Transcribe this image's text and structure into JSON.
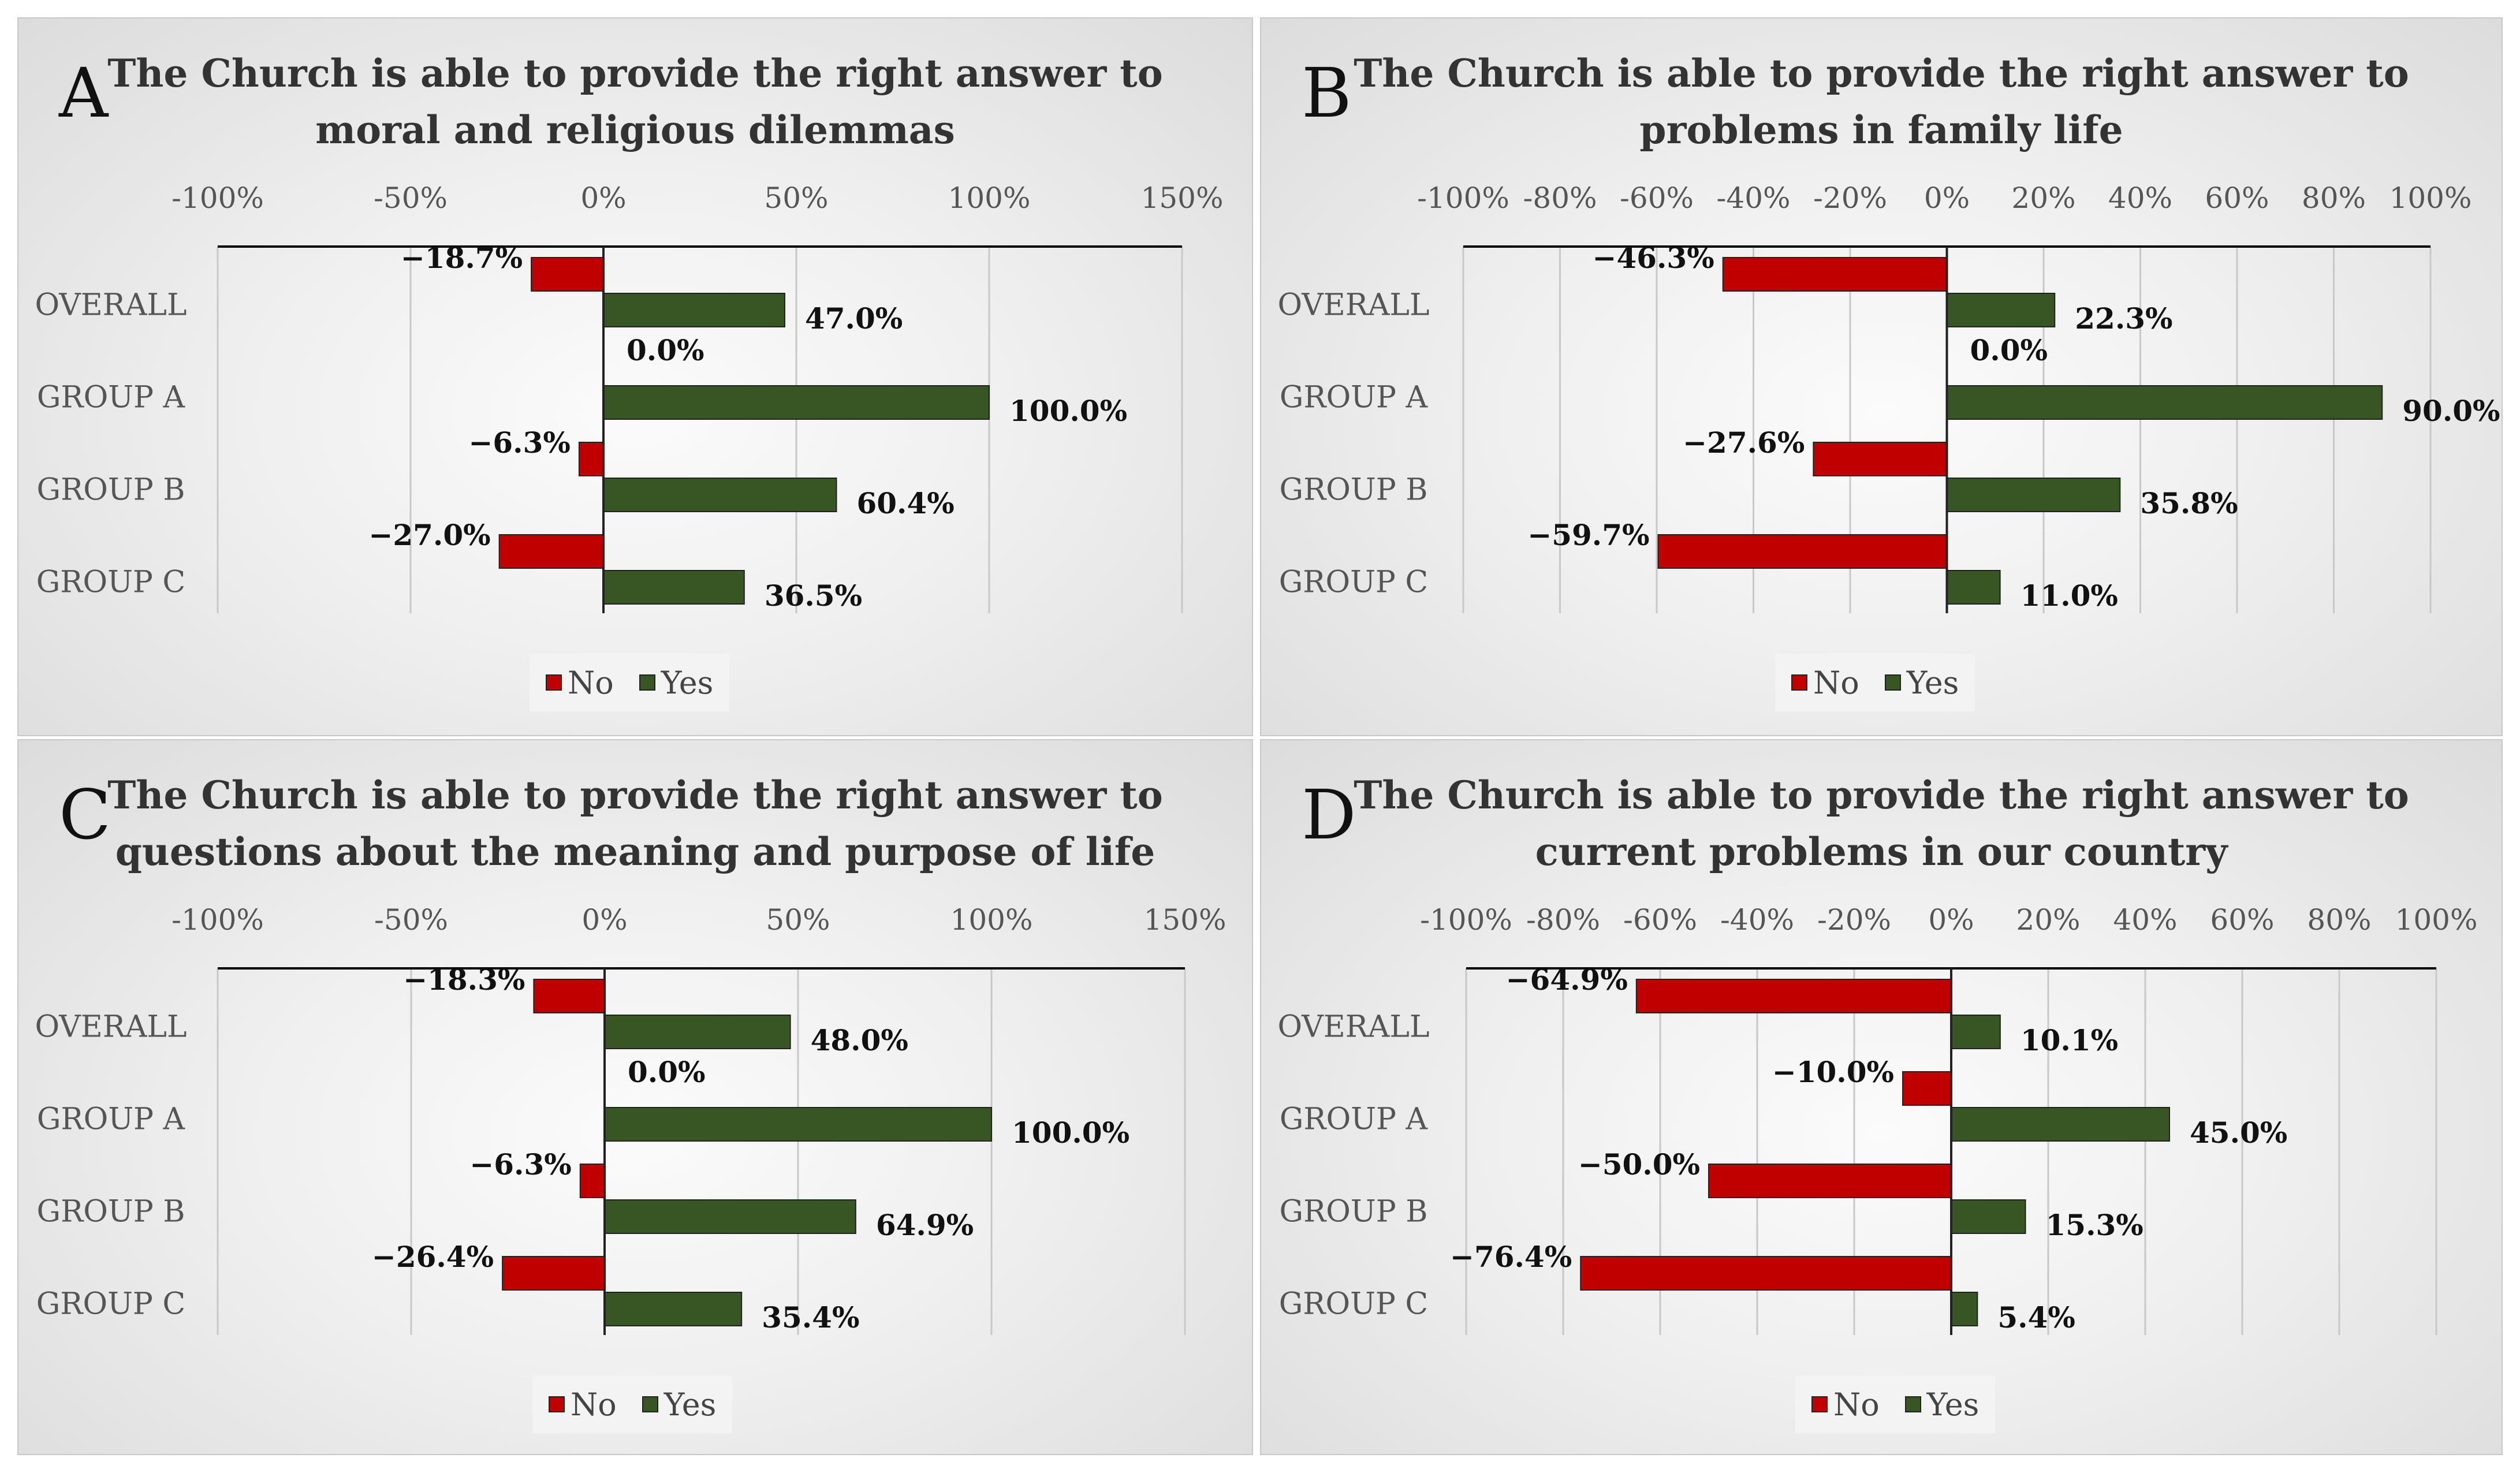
{
  "colors": {
    "no": "#c00000",
    "yes": "#375623",
    "grid": "#c8c8c8",
    "axis": "#000000"
  },
  "legend": {
    "no": "No",
    "yes": "Yes"
  },
  "chart_data": [
    {
      "type": "bar",
      "panel": "A",
      "title": [
        "The Church is able to provide the right answer to",
        "moral and religious dilemmas"
      ],
      "categories": [
        "OVERALL",
        "GROUP A",
        "GROUP B",
        "GROUP C"
      ],
      "xlim": [
        -100,
        150
      ],
      "ticks": [
        -100,
        -50,
        0,
        50,
        100,
        150
      ],
      "tick_labels": [
        "-100%",
        "-50%",
        "0%",
        "50%",
        "100%",
        "150%"
      ],
      "series": [
        {
          "name": "No",
          "values": [
            -18.7,
            0.0,
            -6.3,
            -27.0
          ],
          "labels": [
            "−18.7%",
            "0.0%",
            "−6.3%",
            "−27.0%"
          ]
        },
        {
          "name": "Yes",
          "values": [
            47.0,
            100.0,
            60.4,
            36.5
          ],
          "labels": [
            "47.0%",
            "100.0%",
            "60.4%",
            "36.5%"
          ]
        }
      ],
      "legend_position": "bottom"
    },
    {
      "type": "bar",
      "panel": "B",
      "title": [
        "The Church is able to provide the right answer to",
        "problems in family life"
      ],
      "categories": [
        "OVERALL",
        "GROUP A",
        "GROUP B",
        "GROUP C"
      ],
      "xlim": [
        -100,
        100
      ],
      "ticks": [
        -100,
        -80,
        -60,
        -40,
        -20,
        0,
        20,
        40,
        60,
        80,
        100
      ],
      "tick_labels": [
        "-100%",
        "-80%",
        "-60%",
        "-40%",
        "-20%",
        "0%",
        "20%",
        "40%",
        "60%",
        "80%",
        "100%"
      ],
      "series": [
        {
          "name": "No",
          "values": [
            -46.3,
            0.0,
            -27.6,
            -59.7
          ],
          "labels": [
            "−46.3%",
            "0.0%",
            "−27.6%",
            "−59.7%"
          ]
        },
        {
          "name": "Yes",
          "values": [
            22.3,
            90.0,
            35.8,
            11.0
          ],
          "labels": [
            "22.3%",
            "90.0%",
            "35.8%",
            "11.0%"
          ]
        }
      ],
      "legend_position": "bottom"
    },
    {
      "type": "bar",
      "panel": "C",
      "title": [
        "The Church is able to provide the right answer to",
        "questions about the meaning and purpose of life"
      ],
      "categories": [
        "OVERALL",
        "GROUP A",
        "GROUP B",
        "GROUP C"
      ],
      "xlim": [
        -100,
        150
      ],
      "ticks": [
        -100,
        -50,
        0,
        50,
        100,
        150
      ],
      "tick_labels": [
        "-100%",
        "-50%",
        "0%",
        "50%",
        "100%",
        "150%"
      ],
      "series": [
        {
          "name": "No",
          "values": [
            -18.3,
            0.0,
            -6.3,
            -26.4
          ],
          "labels": [
            "−18.3%",
            "0.0%",
            "−6.3%",
            "−26.4%"
          ]
        },
        {
          "name": "Yes",
          "values": [
            48.0,
            100.0,
            64.9,
            35.4
          ],
          "labels": [
            "48.0%",
            "100.0%",
            "64.9%",
            "35.4%"
          ]
        }
      ],
      "legend_position": "bottom"
    },
    {
      "type": "bar",
      "panel": "D",
      "title": [
        "The Church is able to provide the right answer to",
        "current problems in our country"
      ],
      "categories": [
        "OVERALL",
        "GROUP A",
        "GROUP B",
        "GROUP C"
      ],
      "xlim": [
        -100,
        100
      ],
      "ticks": [
        -100,
        -80,
        -60,
        -40,
        -20,
        0,
        20,
        40,
        60,
        80,
        100
      ],
      "tick_labels": [
        "-100%",
        "-80%",
        "-60%",
        "-40%",
        "-20%",
        "0%",
        "20%",
        "40%",
        "60%",
        "80%",
        "100%"
      ],
      "series": [
        {
          "name": "No",
          "values": [
            -64.9,
            -10.0,
            -50.0,
            -76.4
          ],
          "labels": [
            "−64.9%",
            "−10.0%",
            "−50.0%",
            "−76.4%"
          ]
        },
        {
          "name": "Yes",
          "values": [
            10.1,
            45.0,
            15.3,
            5.4
          ],
          "labels": [
            "10.1%",
            "45.0%",
            "15.3%",
            "5.4%"
          ]
        }
      ],
      "legend_position": "bottom"
    }
  ]
}
